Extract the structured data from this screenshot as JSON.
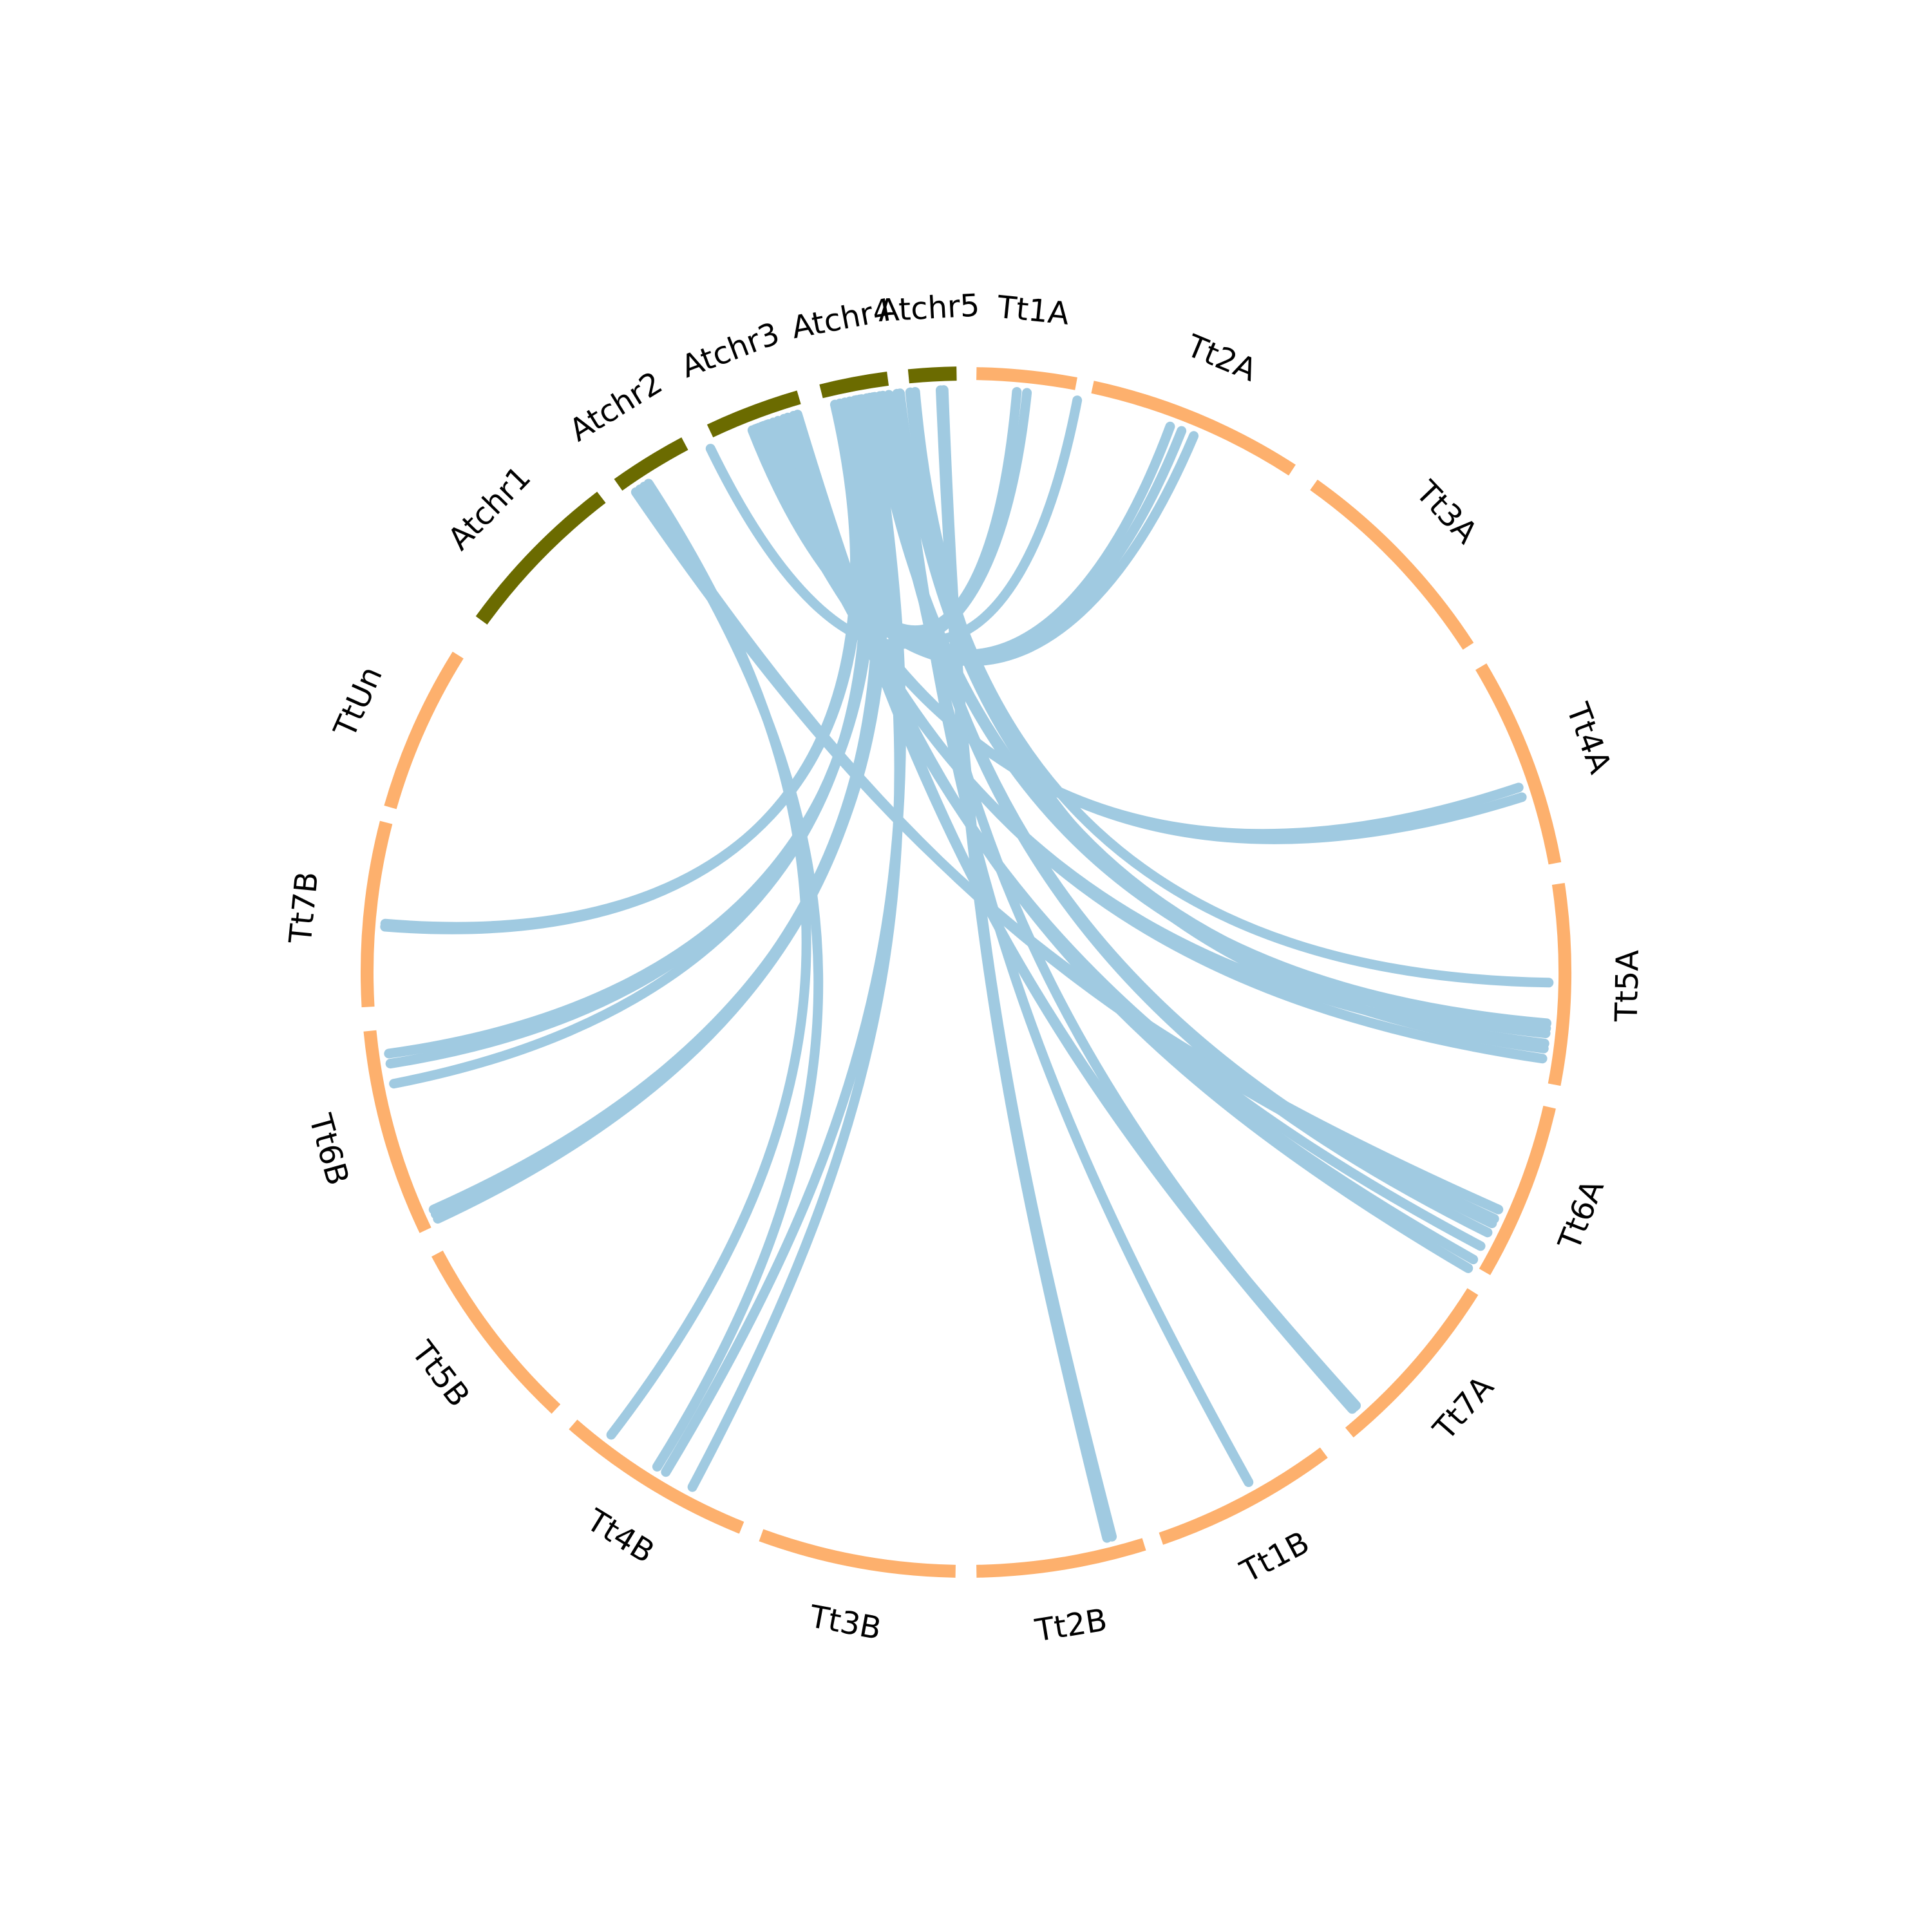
{
  "diagram": {
    "type": "circos",
    "colors": {
      "at_segment": "#6b6b00",
      "tt_segment": "#fdb06d",
      "link": "#a0cae1",
      "background": "#ffffff",
      "label": "#000000"
    },
    "segments": [
      {
        "id": "Atchr1",
        "label": "Atchr1",
        "group": "at",
        "start": -54.0,
        "end": -37.5
      },
      {
        "id": "Atchr2",
        "label": "Atchr2",
        "group": "at",
        "start": -35.5,
        "end": -28.0
      },
      {
        "id": "Atchr3",
        "label": "Atchr3",
        "group": "at",
        "start": -25.3,
        "end": -16.2
      },
      {
        "id": "Atchr4",
        "label": "Atchr4",
        "group": "at",
        "start": -14.0,
        "end": -7.5
      },
      {
        "id": "Atchr5",
        "label": "Atchr5",
        "group": "at",
        "start": -5.5,
        "end": -0.9
      },
      {
        "id": "Tt1A",
        "label": "Tt1A",
        "group": "tt",
        "start": 1.0,
        "end": 10.6
      },
      {
        "id": "Tt2A",
        "label": "Tt2A",
        "group": "tt",
        "start": 12.2,
        "end": 33.0
      },
      {
        "id": "Tt3A",
        "label": "Tt3A",
        "group": "tt",
        "start": 35.5,
        "end": 57.0
      },
      {
        "id": "Tt4A",
        "label": "Tt4A",
        "group": "tt",
        "start": 59.3,
        "end": 79.5
      },
      {
        "id": "Tt5A",
        "label": "Tt5A",
        "group": "tt",
        "start": 81.5,
        "end": 100.8
      },
      {
        "id": "Tt6A",
        "label": "Tt6A",
        "group": "tt",
        "start": 103.0,
        "end": 120.0
      },
      {
        "id": "Tt7A",
        "label": "Tt7A",
        "group": "tt",
        "start": 122.2,
        "end": 140.2
      },
      {
        "id": "Tt1B",
        "label": "Tt1B",
        "group": "tt",
        "start": 143.3,
        "end": 161.0
      },
      {
        "id": "Tt2B",
        "label": "Tt2B",
        "group": "tt",
        "start": 162.7,
        "end": 179.0
      },
      {
        "id": "Tt3B",
        "label": "Tt3B",
        "group": "tt",
        "start": 181.0,
        "end": 200.0
      },
      {
        "id": "Tt4B",
        "label": "Tt4B",
        "group": "tt",
        "start": 202.0,
        "end": 221.0
      },
      {
        "id": "Tt5B",
        "label": "Tt5B",
        "group": "tt",
        "start": 223.2,
        "end": 242.0
      },
      {
        "id": "Tt6B",
        "label": "Tt6B",
        "group": "tt",
        "start": 244.5,
        "end": 264.4
      },
      {
        "id": "Tt7B",
        "label": "Tt7B",
        "group": "tt",
        "start": 266.7,
        "end": 284.5
      },
      {
        "id": "TtUn",
        "label": "TtUn",
        "group": "tt",
        "start": 286.0,
        "end": 302.0
      }
    ],
    "links": [
      [
        -26.0,
        6.0
      ],
      [
        -21.0,
        11.0
      ],
      [
        -20.0,
        5.0
      ],
      [
        -20.5,
        20.5
      ],
      [
        -21.5,
        23.0
      ],
      [
        -21.2,
        21.7
      ],
      [
        -20.8,
        71.5
      ],
      [
        -20.3,
        72.5
      ],
      [
        -19.8,
        97.0
      ],
      [
        -19.3,
        98.5
      ],
      [
        -18.8,
        118.0
      ],
      [
        -18.2,
        119.5
      ],
      [
        -17.8,
        120.5
      ],
      [
        -17.2,
        138.0
      ],
      [
        -16.8,
        138.5
      ],
      [
        -34.5,
        114.0
      ],
      [
        -34.0,
        115.0
      ],
      [
        -33.0,
        217.5
      ],
      [
        -33.5,
        212.0
      ],
      [
        -13.0,
        274.5
      ],
      [
        -12.5,
        274.8
      ],
      [
        -12.0,
        259.0
      ],
      [
        -11.5,
        261.0
      ],
      [
        -11.0,
        262.0
      ],
      [
        -10.8,
        245.5
      ],
      [
        -10.3,
        245.0
      ],
      [
        -9.8,
        246.0
      ],
      [
        -10.5,
        208.0
      ],
      [
        -9.5,
        211.0
      ],
      [
        -9.0,
        95.0
      ],
      [
        -9.2,
        96.0
      ],
      [
        -8.5,
        116.5
      ],
      [
        -8.2,
        115.5
      ],
      [
        -7.6,
        138.2
      ],
      [
        -6.8,
        151.0
      ],
      [
        -6.5,
        95.5
      ],
      [
        -5.5,
        91.0
      ],
      [
        -5.0,
        97.5
      ],
      [
        -2.5,
        166.0
      ],
      [
        -2.2,
        165.5
      ]
    ]
  }
}
